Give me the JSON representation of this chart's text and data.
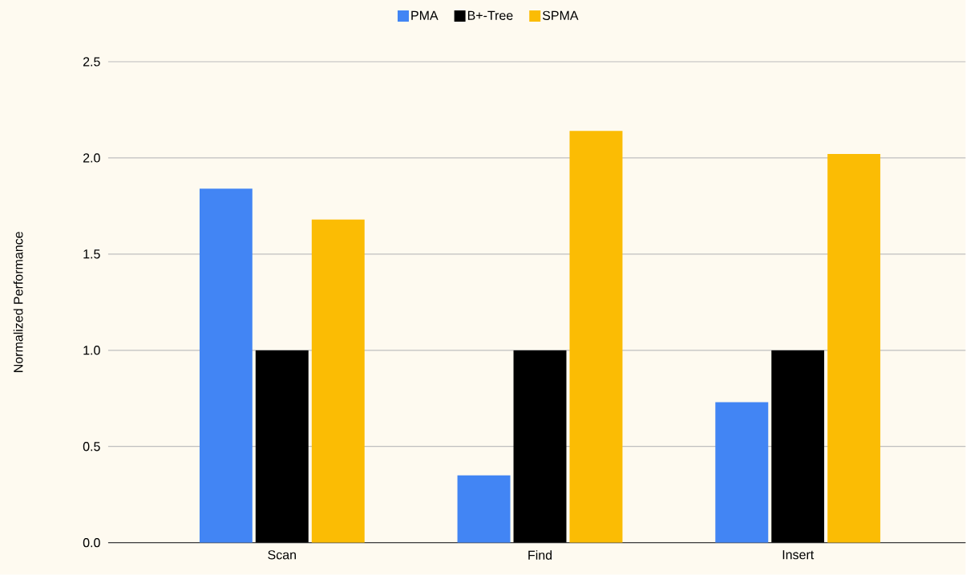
{
  "chart_data": {
    "type": "bar",
    "ylabel": "Normalized Performance",
    "categories": [
      "Scan",
      "Find",
      "Insert"
    ],
    "series": [
      {
        "name": "PMA",
        "color": "#4285f4",
        "values": [
          1.84,
          0.35,
          0.73
        ]
      },
      {
        "name": "B+-Tree",
        "color": "#000000",
        "values": [
          1.0,
          1.0,
          1.0
        ]
      },
      {
        "name": "SPMA",
        "color": "#fbbc04",
        "values": [
          1.68,
          2.14,
          2.02
        ]
      }
    ],
    "ylim": [
      0,
      2.5
    ],
    "yticks": [
      {
        "value": 0,
        "label": "0.0"
      },
      {
        "value": 0.5,
        "label": "0.5"
      },
      {
        "value": 1,
        "label": "1.0"
      },
      {
        "value": 1.5,
        "label": "1.5"
      },
      {
        "value": 2,
        "label": "2.0"
      },
      {
        "value": 2.5,
        "label": "2.5"
      }
    ],
    "grid": "y",
    "legend": "top"
  }
}
